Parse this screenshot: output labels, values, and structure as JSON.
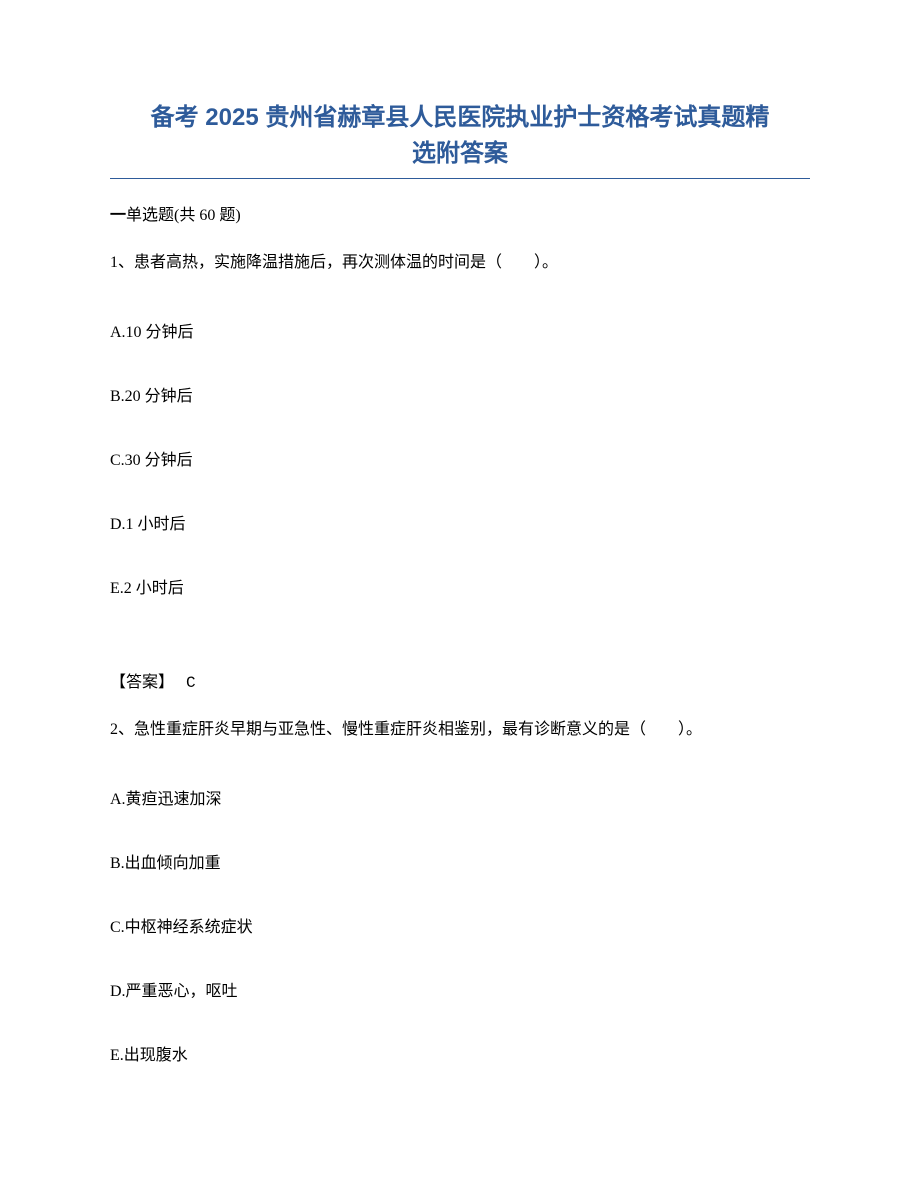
{
  "title_line1": "备考 2025 贵州省赫章县人民医院执业护士资格考试真题精",
  "title_line2": "选附答案",
  "section": {
    "prefix": "一",
    "label": "单选题",
    "count_text": "(共 60 题)"
  },
  "q1": {
    "stem": "1、患者高热，实施降温措施后，再次测体温的时间是（　　）。",
    "options": {
      "A": "A.10 分钟后",
      "B": "B.20 分钟后",
      "C": "C.30 分钟后",
      "D": "D.1 小时后",
      "E": "E.2 小时后"
    },
    "answer_label": "【答案】",
    "answer_value": "C"
  },
  "q2": {
    "stem": "2、急性重症肝炎早期与亚急性、慢性重症肝炎相鉴别，最有诊断意义的是（　　）。",
    "options": {
      "A": "A.黄疸迅速加深",
      "B": "B.出血倾向加重",
      "C": "C.中枢神经系统症状",
      "D": "D.严重恶心，呕吐",
      "E": "E.出现腹水"
    }
  },
  "colors": {
    "title_color": "#2e5b9a",
    "text_color": "#000000",
    "background": "#ffffff",
    "divider_color": "#2e5b9a"
  },
  "typography": {
    "title_fontsize": 24,
    "body_fontsize": 16,
    "title_font": "Microsoft YaHei",
    "body_font": "SimSun"
  }
}
